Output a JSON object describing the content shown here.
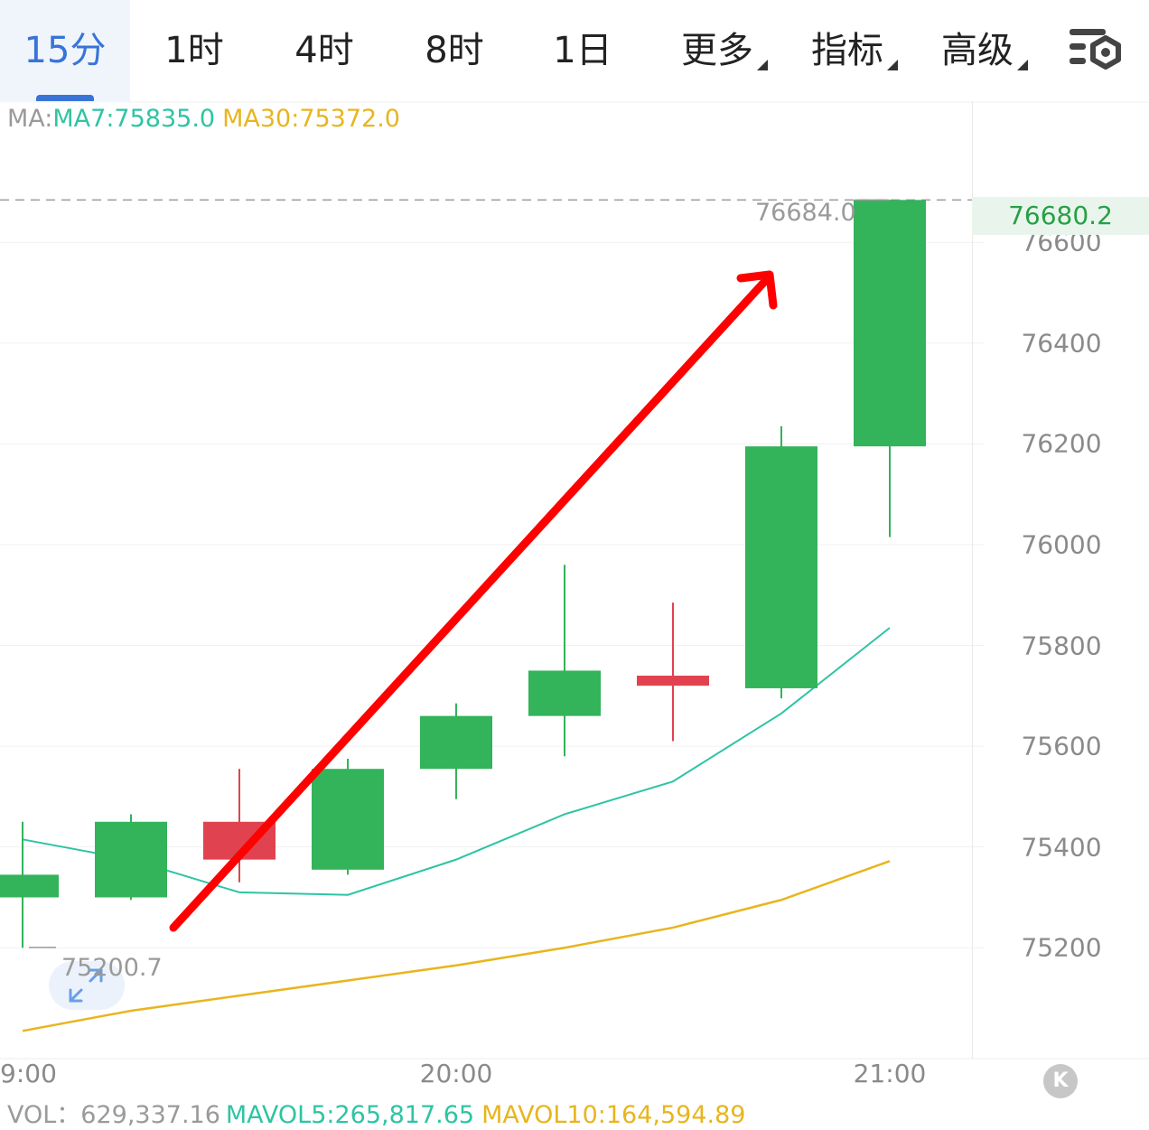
{
  "tabs": [
    {
      "label": "15分",
      "active": true,
      "dropdown": false
    },
    {
      "label": "1时",
      "active": false,
      "dropdown": false
    },
    {
      "label": "4时",
      "active": false,
      "dropdown": false
    },
    {
      "label": "8时",
      "active": false,
      "dropdown": false
    },
    {
      "label": "1日",
      "active": false,
      "dropdown": false
    },
    {
      "label": "更多",
      "active": false,
      "dropdown": true
    },
    {
      "label": "指标",
      "active": false,
      "dropdown": true
    },
    {
      "label": "高级",
      "active": false,
      "dropdown": true
    }
  ],
  "settings_icon": "chart-settings-icon",
  "ma": {
    "label": "MA:",
    "ma7": "MA7:75835.0",
    "ma30": "MA30:75372.0"
  },
  "price_axis": [
    "76600",
    "76400",
    "76200",
    "76000",
    "75800",
    "75600",
    "75400",
    "75200"
  ],
  "last_price": "76680.2",
  "high_marker": "76684.0",
  "low_marker": "75200.7",
  "time_axis": [
    "9:00",
    "20:00",
    "21:00"
  ],
  "volume": {
    "label": "VOL：629,337.16",
    "mavol5": "MAVOL5:265,817.65",
    "mavol10": "MAVOL10:164,594.89"
  },
  "colors": {
    "up": "#33b35a",
    "down": "#e0434f",
    "ma7": "#2ec4a4",
    "ma30": "#e8b51e",
    "accent": "#3874d8",
    "arrow": "#ff0000"
  },
  "chart_data": {
    "type": "candlestick",
    "ylim": [
      74980,
      76880
    ],
    "candles": [
      {
        "open": 75300,
        "close": 75345,
        "high": 75450,
        "low": 75200
      },
      {
        "open": 75300,
        "close": 75450,
        "high": 75465,
        "low": 75295
      },
      {
        "open": 75450,
        "close": 75375,
        "high": 75555,
        "low": 75330
      },
      {
        "open": 75355,
        "close": 75555,
        "high": 75575,
        "low": 75345
      },
      {
        "open": 75555,
        "close": 75660,
        "high": 75685,
        "low": 75495
      },
      {
        "open": 75660,
        "close": 75750,
        "high": 75960,
        "low": 75580
      },
      {
        "open": 75740,
        "close": 75720,
        "high": 75885,
        "low": 75610
      },
      {
        "open": 75715,
        "close": 76195,
        "high": 76235,
        "low": 75695
      },
      {
        "open": 76195,
        "close": 76684,
        "high": 76684,
        "low": 76015
      }
    ],
    "ma7": [
      75415,
      75375,
      75310,
      75305,
      75375,
      75465,
      75530,
      75665,
      75835
    ],
    "ma30": [
      75035,
      75075,
      75105,
      75135,
      75165,
      75200,
      75240,
      75295,
      75372
    ]
  }
}
